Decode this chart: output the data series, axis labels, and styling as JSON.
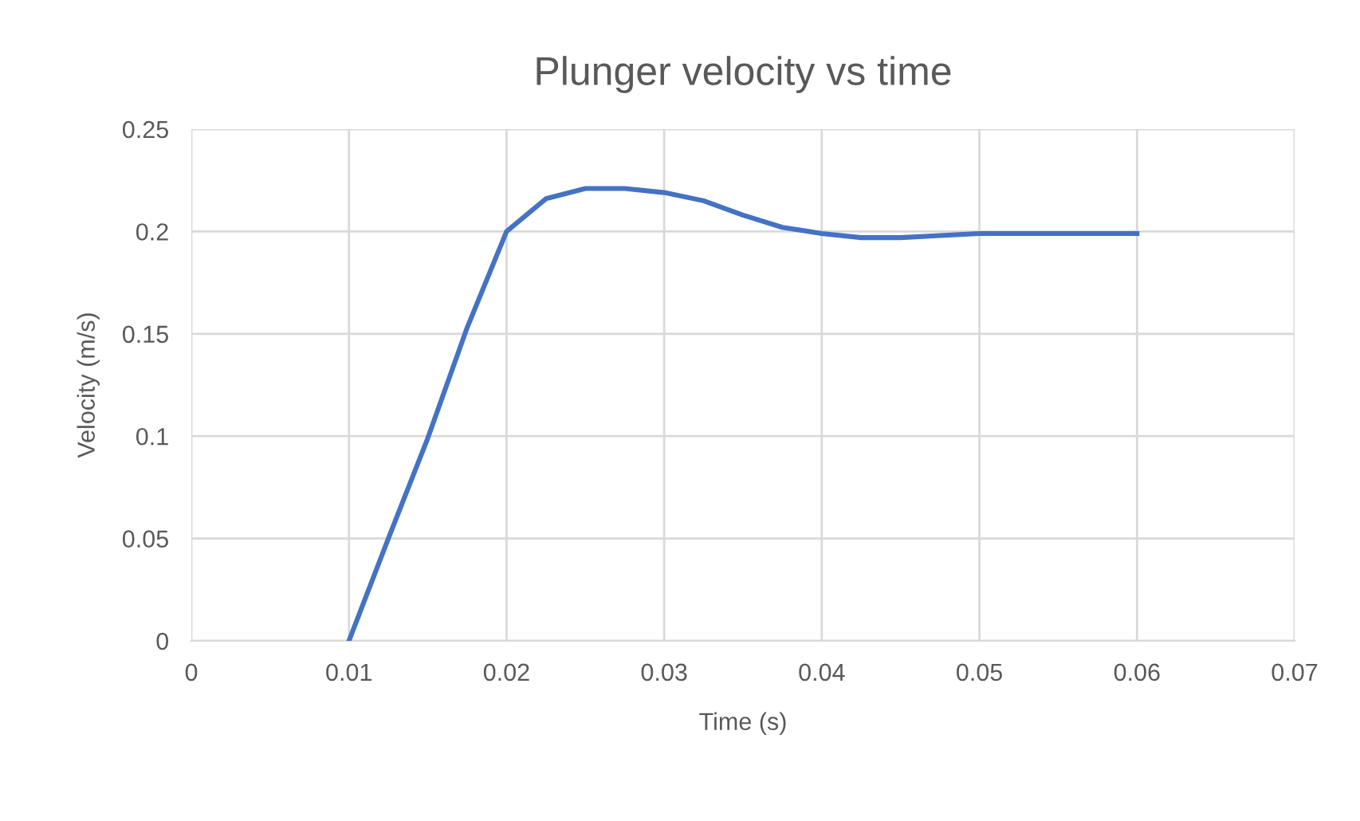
{
  "chart_data": {
    "type": "line",
    "title": "Plunger velocity vs time",
    "xlabel": "Time (s)",
    "ylabel": "Velocity (m/s)",
    "x": [
      0.01,
      0.0125,
      0.015,
      0.0175,
      0.02,
      0.0225,
      0.025,
      0.0275,
      0.03,
      0.0325,
      0.035,
      0.0375,
      0.04,
      0.0425,
      0.045,
      0.0475,
      0.05,
      0.055,
      0.06
    ],
    "series": [
      {
        "color": "#4472c4",
        "values": [
          0,
          0.05,
          0.099,
          0.153,
          0.2,
          0.216,
          0.221,
          0.221,
          0.219,
          0.215,
          0.208,
          0.202,
          0.199,
          0.197,
          0.197,
          0.198,
          0.199,
          0.199,
          0.199
        ]
      }
    ],
    "xlim": [
      0,
      0.07
    ],
    "xticks": [
      0,
      0.01,
      0.02,
      0.03,
      0.04,
      0.05,
      0.06,
      0.07
    ],
    "ylim": [
      0,
      0.25
    ],
    "yticks": [
      0,
      0.05,
      0.1,
      0.15,
      0.2,
      0.25
    ],
    "grid": true,
    "marker": "none",
    "line_style": "solid",
    "legend": false
  }
}
